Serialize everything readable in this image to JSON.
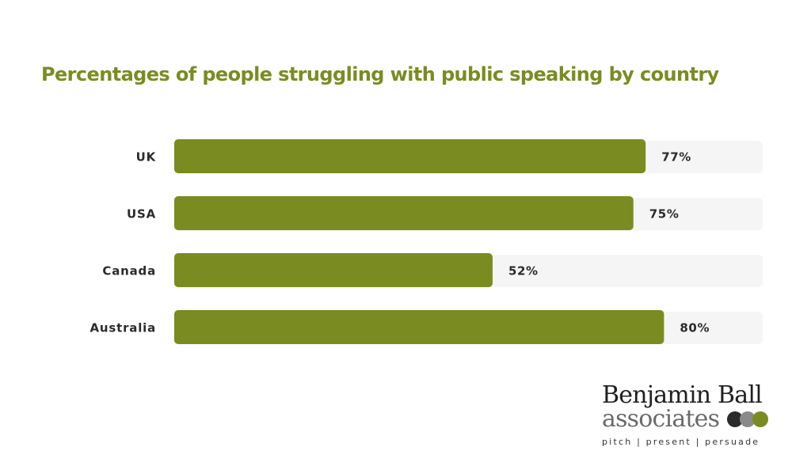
{
  "chart_data": {
    "type": "bar",
    "orientation": "horizontal",
    "title": "Percentages of people struggling with public speaking by country",
    "categories": [
      "UK",
      "USA",
      "Canada",
      "Australia"
    ],
    "values": [
      77,
      75,
      52,
      80
    ],
    "value_labels": [
      "77%",
      "75%",
      "52%",
      "80%"
    ],
    "xlim": [
      0,
      100
    ],
    "grid": false,
    "legend": "none",
    "bar_color": "#7a8c21",
    "track_color": "#f5f5f5"
  },
  "logo": {
    "line1": "Benjamin Ball",
    "line2": "associates",
    "tagline": "pitch  |  present  |  persuade",
    "dot_colors": [
      "#2b2b2b",
      "#8a8a8a",
      "#7a8c21"
    ]
  }
}
